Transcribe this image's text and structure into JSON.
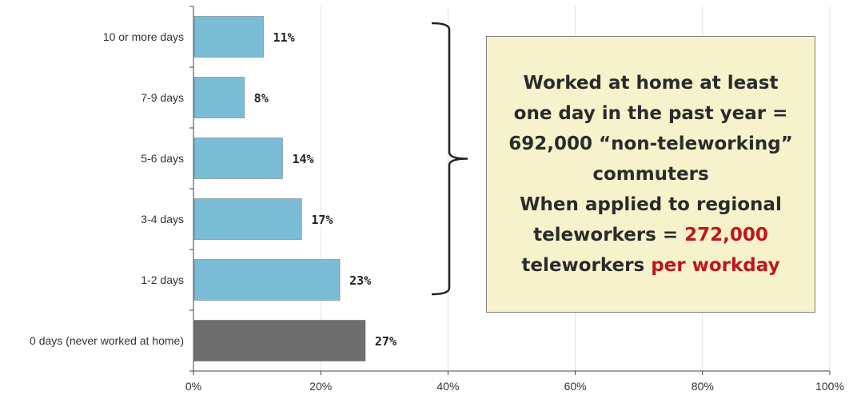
{
  "chart_data": {
    "type": "bar",
    "orientation": "horizontal",
    "categories": [
      "10 or more days",
      "7-9 days",
      "5-6 days",
      "3-4 days",
      "1-2 days",
      "0 days (never worked at home)"
    ],
    "values": [
      11,
      8,
      14,
      17,
      23,
      27
    ],
    "data_labels": [
      "11%",
      "8%",
      "14%",
      "17%",
      "23%",
      "27%"
    ],
    "bar_colors": [
      "#7bbdd6",
      "#7bbdd6",
      "#7bbdd6",
      "#7bbdd6",
      "#7bbdd6",
      "#6e6e6e"
    ],
    "xlim": [
      0,
      100
    ],
    "xticks": [
      0,
      20,
      40,
      60,
      80,
      100
    ],
    "xtick_labels": [
      "0%",
      "20%",
      "40%",
      "60%",
      "80%",
      "100%"
    ],
    "grid": "vertical",
    "bracket_spans": [
      "10 or more days",
      "1-2 days"
    ]
  },
  "callout": {
    "line1": "Worked at home at least",
    "line2": "one day in the past year =",
    "line3": "692,000 “non-teleworking”",
    "line4": "commuters",
    "line5": "When applied to regional",
    "line6a": "teleworkers = ",
    "line6b": "272,000",
    "line7a": "teleworkers ",
    "line7b": "per workday",
    "highlight_color": "#c0161d"
  }
}
